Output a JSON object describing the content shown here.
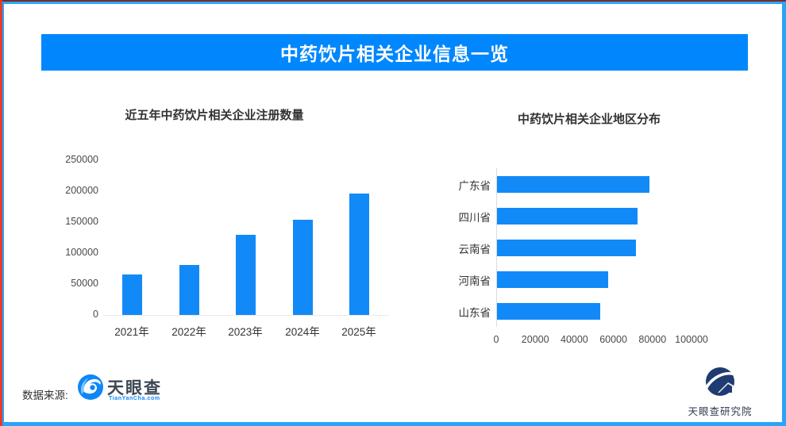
{
  "page": {
    "banner_title": "中药饮片相关企业信息一览",
    "footer": {
      "source_label": "数据来源:",
      "brand_name": "天眼查",
      "brand_sub": "TianYanCha.com",
      "institute_name": "天眼查研究院"
    },
    "colors": {
      "banner_blue": "#0187fd",
      "bar_blue": "#118af8",
      "frame_blue": "#2ba4f7",
      "left_stripe_red": "#e6392f",
      "top_stripe_dark_red": "#7a2a23"
    },
    "icons": [
      "tianyancha-eye-icon",
      "tianyancha-institute-icon"
    ]
  },
  "chart_data": [
    {
      "type": "bar",
      "title": "近五年中药饮片相关企业注册数量",
      "categories": [
        "2021年",
        "2022年",
        "2023年",
        "2024年",
        "2025年"
      ],
      "values": [
        66000,
        81000,
        130000,
        154000,
        196000
      ],
      "ylim": [
        0,
        250000
      ],
      "yticks": [
        0,
        50000,
        100000,
        150000,
        200000,
        250000
      ],
      "xlabel": "",
      "ylabel": "",
      "grid": false,
      "legend": "none"
    },
    {
      "type": "bar",
      "orientation": "horizontal",
      "title": "中药饮片相关企业地区分布",
      "categories": [
        "广东省",
        "四川省",
        "云南省",
        "河南省",
        "山东省"
      ],
      "values": [
        78000,
        72000,
        71000,
        57000,
        53000
      ],
      "xlim": [
        0,
        100000
      ],
      "xticks": [
        0,
        20000,
        40000,
        60000,
        80000,
        100000
      ],
      "xlabel": "",
      "ylabel": "",
      "grid": false,
      "legend": "none"
    }
  ]
}
